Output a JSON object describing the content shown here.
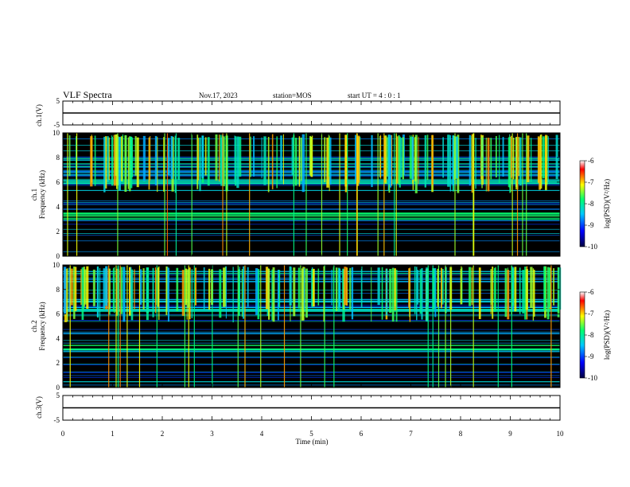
{
  "header": {
    "title": "VLF Spectra",
    "date": "Nov.17, 2023",
    "station": "station=MOS",
    "start_ut": "start UT =  4 : 0  : 1"
  },
  "chart_data": [
    {
      "type": "line",
      "ylabel": "ch.1(V)",
      "ylim": [
        -5,
        5
      ],
      "yticks": [
        "5",
        "-5"
      ],
      "series": [
        {
          "x": [
            0,
            10
          ],
          "y": [
            0,
            0
          ]
        }
      ]
    },
    {
      "type": "heatmap",
      "ylabel": "ch.1\nFrequency (kHz)",
      "ylim": [
        0,
        10
      ],
      "yticks": [
        "0",
        "2",
        "4",
        "6",
        "8",
        "10"
      ],
      "band_khz": [
        [
          3.0,
          3.6
        ],
        [
          5.9,
          6.2
        ],
        [
          6.6,
          9.6
        ]
      ],
      "colorbar": {
        "label": "log(PSD)(V²/Hz)",
        "range": [
          -10,
          -6
        ],
        "ticks": [
          "-6",
          "-7",
          "-8",
          "-9",
          "-10"
        ]
      }
    },
    {
      "type": "heatmap",
      "ylabel": "ch.2\nFrequency (kHz)",
      "ylim": [
        0,
        10
      ],
      "yticks": [
        "0",
        "2",
        "4",
        "6",
        "8",
        "10"
      ],
      "band_khz": [
        [
          2.9,
          3.5
        ],
        [
          6.2,
          6.6
        ],
        [
          6.8,
          9.6
        ]
      ],
      "colorbar": {
        "label": "log(PSD)(V²/Hz)",
        "range": [
          -10,
          -6
        ],
        "ticks": [
          "-6",
          "-7",
          "-8",
          "-9",
          "-10"
        ]
      }
    },
    {
      "type": "line",
      "ylabel": "ch.3(V)",
      "ylim": [
        -5,
        5
      ],
      "yticks": [
        "5",
        "-5"
      ],
      "series": [
        {
          "x": [
            0,
            10
          ],
          "y": [
            0,
            0
          ]
        }
      ]
    }
  ],
  "xaxis": {
    "label": "Time  (min)",
    "xlim": [
      0,
      10
    ],
    "ticks": [
      "0",
      "1",
      "2",
      "3",
      "4",
      "5",
      "6",
      "7",
      "8",
      "9",
      "10"
    ]
  },
  "colors": {
    "spectrogram_background": "#000000",
    "colormap": [
      "#000060",
      "#0000ff",
      "#00c8ff",
      "#00ff70",
      "#ffff00",
      "#ff0000",
      "#ffffff"
    ]
  }
}
